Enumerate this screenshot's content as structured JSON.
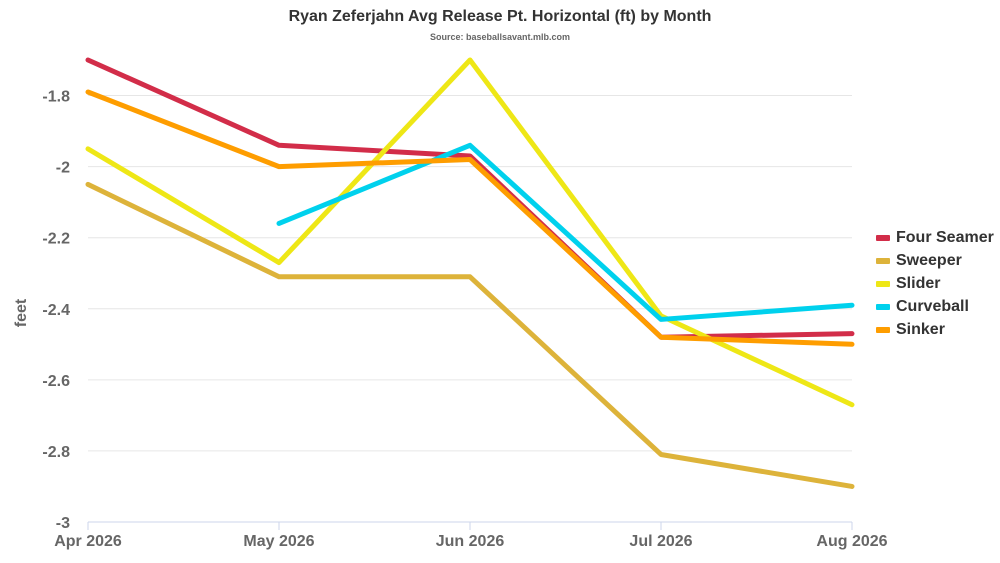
{
  "chart_data": {
    "type": "line",
    "title": "Ryan Zeferjahn Avg Release Pt. Horizontal (ft) by Month",
    "subtitle": "Source: baseballsavant.mlb.com",
    "xlabel": "",
    "ylabel": "feet",
    "categories": [
      "Apr 2026",
      "May 2026",
      "Jun 2026",
      "Jul 2026",
      "Aug 2026"
    ],
    "ylim": [
      -3,
      -1.7
    ],
    "yticks": [
      -1.8,
      -2,
      -2.2,
      -2.4,
      -2.6,
      -2.8,
      -3
    ],
    "ytick_labels": [
      "-1.8",
      "-2",
      "-2.2",
      "-2.4",
      "-2.6",
      "-2.8",
      "-3"
    ],
    "grid": true,
    "legend_position": "right",
    "series": [
      {
        "name": "Four Seamer",
        "color": "#d22d49",
        "values": [
          -1.7,
          -1.94,
          -1.97,
          -2.48,
          -2.47
        ]
      },
      {
        "name": "Sweeper",
        "color": "#ddb33a",
        "values": [
          -2.05,
          -2.31,
          -2.31,
          -2.81,
          -2.9
        ]
      },
      {
        "name": "Slider",
        "color": "#eee716",
        "values": [
          -1.95,
          -2.27,
          -1.7,
          -2.42,
          -2.67
        ]
      },
      {
        "name": "Curveball",
        "color": "#00d1ed",
        "values": [
          null,
          -2.16,
          -1.94,
          -2.43,
          -2.39
        ]
      },
      {
        "name": "Sinker",
        "color": "#fe9d00",
        "values": [
          -1.79,
          -2.0,
          -1.98,
          -2.48,
          -2.5
        ]
      }
    ]
  }
}
